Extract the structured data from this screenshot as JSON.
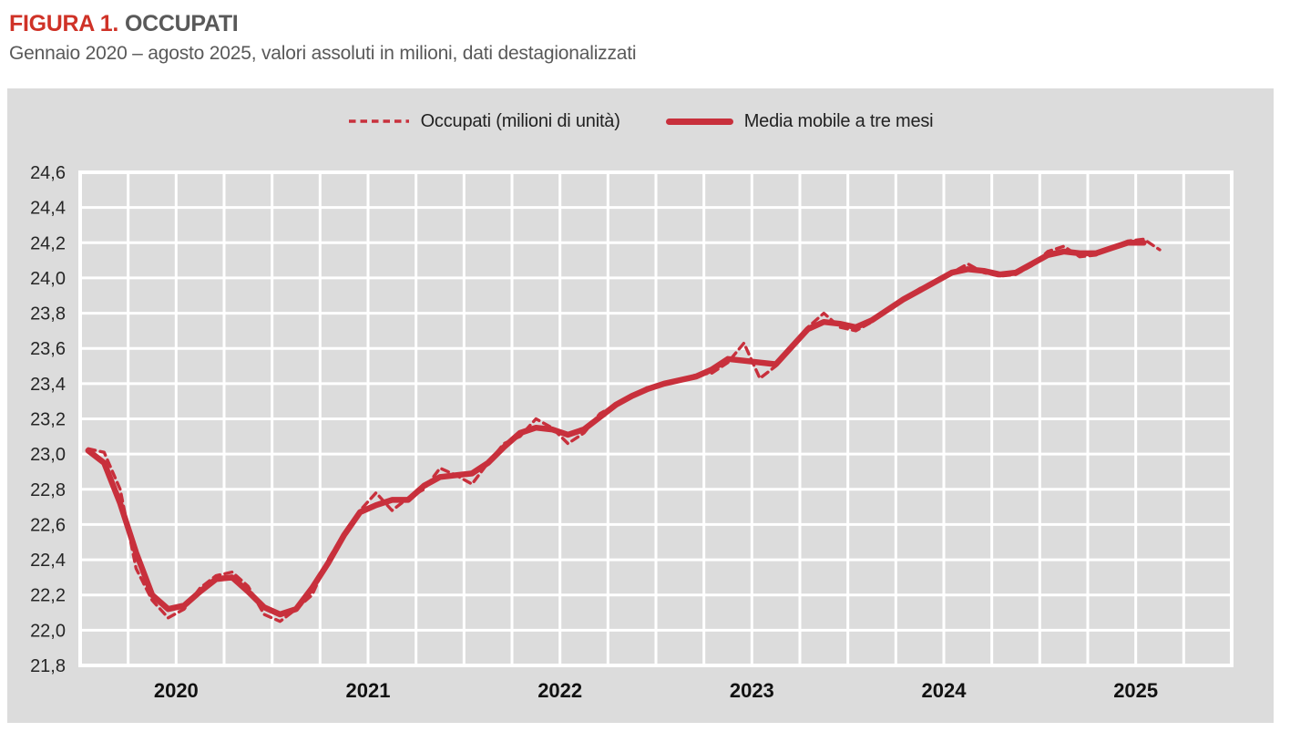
{
  "figure": {
    "title_prefix": "FIGURA 1.",
    "title": "OCCUPATI",
    "subtitle": "Gennaio 2020 – agosto 2025, valori assoluti in milioni, dati destagionalizzati"
  },
  "legend": {
    "dashed_label": "Occupati (milioni di unità)",
    "solid_label": "Media mobile a tre mesi",
    "position": "top-center"
  },
  "colors": {
    "line_red": "#c8303c",
    "title_red": "#cf3227",
    "title_gray": "#595959",
    "panel_bg": "#dcdcdc",
    "grid": "#ffffff",
    "axis_text": "#262626",
    "year_text": "#111111"
  },
  "chart_data": {
    "type": "line",
    "title": "Occupati",
    "period": "Gennaio 2020 – agosto 2025",
    "unit": "milioni",
    "x_start": "2020-01",
    "x_end": "2025-08",
    "x_axis_years": [
      "2020",
      "2021",
      "2022",
      "2023",
      "2024",
      "2025"
    ],
    "total_month_slots": 72,
    "grid_months_per_division": 3,
    "ylim": [
      21.8,
      24.6
    ],
    "y_tick_step": 0.2,
    "y_tick_labels_bottom_to_top": [
      "21,8",
      "22,0",
      "22,2",
      "22,4",
      "22,6",
      "22,8",
      "23,0",
      "23,2",
      "23,4",
      "23,6",
      "23,8",
      "24,0",
      "24,2",
      "24,4",
      "24,6"
    ],
    "grid": "white gridlines on gray background",
    "series": [
      {
        "name": "Occupati (milioni di unità)",
        "style": "dashed",
        "start_month_index": 0,
        "values": [
          23.03,
          23.01,
          22.8,
          22.35,
          22.17,
          22.07,
          22.12,
          22.24,
          22.31,
          22.33,
          22.25,
          22.09,
          22.05,
          22.12,
          22.2,
          22.4,
          22.55,
          22.68,
          22.78,
          22.68,
          22.75,
          22.8,
          22.92,
          22.88,
          22.83,
          22.95,
          23.06,
          23.1,
          23.2,
          23.15,
          23.06,
          23.12,
          23.23,
          23.28,
          23.33,
          23.38,
          23.4,
          23.42,
          23.45,
          23.46,
          23.52,
          23.63,
          23.43,
          23.5,
          23.6,
          23.72,
          23.8,
          23.72,
          23.7,
          23.75,
          23.82,
          23.88,
          23.94,
          23.98,
          24.03,
          24.08,
          24.03,
          24.01,
          24.02,
          24.07,
          24.15,
          24.18,
          24.12,
          24.13,
          24.17,
          24.21,
          24.22,
          24.16
        ]
      },
      {
        "name": "Media mobile a tre mesi",
        "style": "solid",
        "start_month_index": 0,
        "values": [
          23.02,
          22.95,
          22.72,
          22.44,
          22.2,
          22.12,
          22.14,
          22.22,
          22.29,
          22.3,
          22.22,
          22.13,
          22.09,
          22.12,
          22.24,
          22.38,
          22.54,
          22.67,
          22.71,
          22.74,
          22.74,
          22.82,
          22.87,
          22.88,
          22.89,
          22.95,
          23.04,
          23.12,
          23.15,
          23.14,
          23.11,
          23.14,
          23.21,
          23.28,
          23.33,
          23.37,
          23.4,
          23.42,
          23.44,
          23.48,
          23.54,
          23.53,
          23.52,
          23.51,
          23.61,
          23.71,
          23.75,
          23.74,
          23.72,
          23.76,
          23.82,
          23.88,
          23.93,
          23.98,
          24.03,
          24.05,
          24.04,
          24.02,
          24.03,
          24.08,
          24.13,
          24.15,
          24.14,
          24.14,
          24.17,
          24.2,
          24.2
        ]
      }
    ]
  }
}
